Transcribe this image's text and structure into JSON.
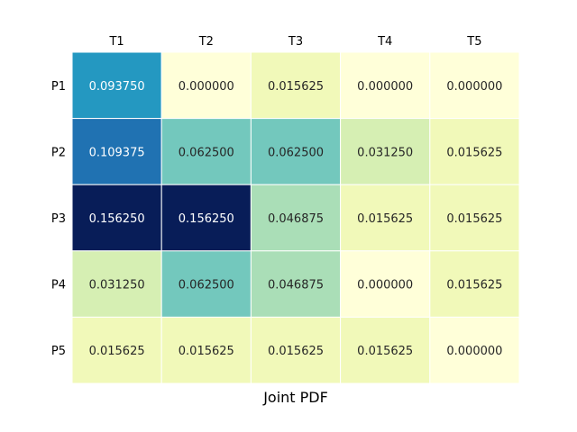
{
  "chart_data": {
    "type": "heatmap",
    "title": "",
    "xlabel": "Joint PDF",
    "ylabel": "",
    "x_categories": [
      "T1",
      "T2",
      "T3",
      "T4",
      "T5"
    ],
    "y_categories": [
      "P1",
      "P2",
      "P3",
      "P4",
      "P5"
    ],
    "x_tick_position": "top",
    "colormap": "YlGnBu",
    "colorbar": false,
    "annotated": true,
    "value_format": "6 decimals",
    "values": [
      [
        0.09375,
        0.0,
        0.015625,
        0.0,
        0.0
      ],
      [
        0.109375,
        0.0625,
        0.0625,
        0.03125,
        0.015625
      ],
      [
        0.15625,
        0.15625,
        0.046875,
        0.015625,
        0.015625
      ],
      [
        0.03125,
        0.0625,
        0.046875,
        0.0,
        0.015625
      ],
      [
        0.015625,
        0.015625,
        0.015625,
        0.015625,
        0.0
      ]
    ],
    "value_labels": [
      [
        "0.093750",
        "0.000000",
        "0.015625",
        "0.000000",
        "0.000000"
      ],
      [
        "0.109375",
        "0.062500",
        "0.062500",
        "0.031250",
        "0.015625"
      ],
      [
        "0.156250",
        "0.156250",
        "0.046875",
        "0.015625",
        "0.015625"
      ],
      [
        "0.031250",
        "0.062500",
        "0.046875",
        "0.000000",
        "0.015625"
      ],
      [
        "0.015625",
        "0.015625",
        "0.015625",
        "0.015625",
        "0.000000"
      ]
    ],
    "colors": {
      "cell_border": "#ffffff",
      "text_dark": "#262626",
      "text_light": "#ffffff",
      "colormap_stops": [
        "#ffffd9",
        "#edf8b1",
        "#c7e9b4",
        "#7fcdbb",
        "#41b6c4",
        "#1d91c0",
        "#225ea8",
        "#253494",
        "#081d58"
      ]
    }
  }
}
